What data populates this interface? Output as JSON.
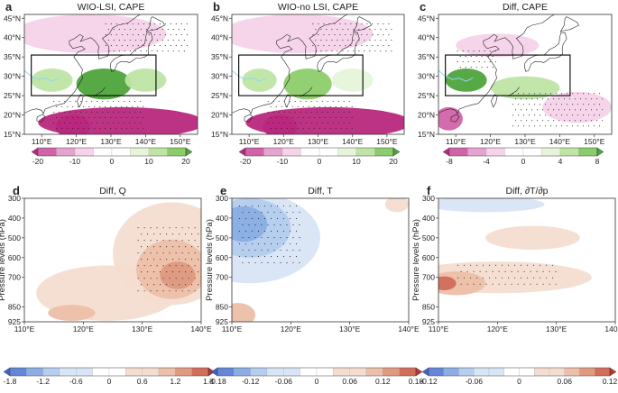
{
  "colors": {
    "pos": [
      "#e6f4d9",
      "#bfe5a5",
      "#8ccd6b",
      "#4ea43b"
    ],
    "neg": [
      "#f6d3ea",
      "#e7a3cf",
      "#d164a8",
      "#b8287d"
    ],
    "warm": [
      "#f4ddd0",
      "#ecbfa8",
      "#df9a7f",
      "#d26d5a",
      "#bc3436"
    ],
    "cool": [
      "#d8e5f5",
      "#b5cdee",
      "#8aaee3",
      "#6386d9",
      "#4261cc"
    ],
    "box": "#000000",
    "coast": "#222222",
    "tibet": "#8fd7ee"
  },
  "chart_data": [
    {
      "id": "a",
      "type": "heatmap",
      "panel_letter": "a",
      "title": "WIO-LSI, CAPE",
      "x": [
        110,
        120,
        130,
        140,
        150
      ],
      "x_tick_labels": [
        "110°E",
        "120°E",
        "130°E",
        "140°E",
        "150°E"
      ],
      "y": [
        15,
        20,
        25,
        30,
        35,
        40,
        45
      ],
      "y_tick_labels": [
        "15°N",
        "20°N",
        "25°N",
        "30°N",
        "35°N",
        "40°N",
        "45°N"
      ],
      "xlim": [
        105,
        155
      ],
      "ylim": [
        15,
        46
      ],
      "colorbar": {
        "levels": [
          -25,
          -20,
          -15,
          -10,
          -5,
          0,
          5,
          10,
          15,
          20,
          25
        ],
        "tick_values": [
          -20,
          -10,
          0,
          10,
          20
        ],
        "tick_labels": [
          "-20",
          "-10",
          "0",
          "10",
          "20"
        ],
        "palette": "pink-green"
      },
      "box_region": {
        "lon": [
          107,
          143
        ],
        "lat": [
          25,
          35.5
        ]
      },
      "fields": [
        {
          "lon": 128,
          "lat": 28,
          "value": 22,
          "rlon": 8,
          "rlat": 4
        },
        {
          "lon": 113,
          "lat": 29,
          "value": 14,
          "rlon": 6,
          "rlat": 3
        },
        {
          "lon": 140,
          "lat": 29,
          "value": 10,
          "rlon": 6,
          "rlat": 3
        },
        {
          "lon": 133,
          "lat": 18,
          "value": -24,
          "rlon": 24,
          "rlat": 4
        },
        {
          "lon": 119,
          "lat": 17,
          "value": -24,
          "rlon": 5,
          "rlat": 3
        },
        {
          "lon": 124,
          "lat": 41,
          "value": -8,
          "rlon": 22,
          "rlat": 5
        }
      ],
      "stipple": [
        {
          "lon": [
            128,
            152
          ],
          "lat": [
            36,
            44
          ]
        },
        {
          "lon": [
            113,
            140
          ],
          "lat": [
            16,
            24
          ]
        }
      ]
    },
    {
      "id": "b",
      "type": "heatmap",
      "panel_letter": "b",
      "title": "WIO-no LSI, CAPE",
      "x": [
        110,
        120,
        130,
        140,
        150
      ],
      "x_tick_labels": [
        "110°E",
        "120°E",
        "130°E",
        "140°E",
        "150°E"
      ],
      "y": [
        15,
        20,
        25,
        30,
        35,
        40,
        45
      ],
      "y_tick_labels": [
        "15°N",
        "20°N",
        "25°N",
        "30°N",
        "35°N",
        "40°N",
        "45°N"
      ],
      "xlim": [
        105,
        155
      ],
      "ylim": [
        15,
        46
      ],
      "colorbar": {
        "levels": [
          -25,
          -20,
          -15,
          -10,
          -5,
          0,
          5,
          10,
          15,
          20,
          25
        ],
        "tick_values": [
          -20,
          -10,
          0,
          10,
          20
        ],
        "tick_labels": [
          "-20",
          "-10",
          "0",
          "10",
          "20"
        ],
        "palette": "pink-green"
      },
      "box_region": {
        "lon": [
          107,
          143
        ],
        "lat": [
          25,
          35.5
        ]
      },
      "fields": [
        {
          "lon": 127,
          "lat": 28,
          "value": 18,
          "rlon": 7,
          "rlat": 4
        },
        {
          "lon": 113,
          "lat": 29,
          "value": 12,
          "rlon": 5,
          "rlat": 3
        },
        {
          "lon": 140,
          "lat": 29,
          "value": 8,
          "rlon": 6,
          "rlat": 3
        },
        {
          "lon": 133,
          "lat": 18,
          "value": -24,
          "rlon": 24,
          "rlat": 4
        },
        {
          "lon": 119,
          "lat": 17,
          "value": -22,
          "rlon": 5,
          "rlat": 3
        },
        {
          "lon": 124,
          "lat": 41,
          "value": -8,
          "rlon": 22,
          "rlat": 5
        }
      ],
      "stipple": [
        {
          "lon": [
            128,
            152
          ],
          "lat": [
            36,
            44
          ]
        },
        {
          "lon": [
            115,
            140
          ],
          "lat": [
            16,
            24
          ]
        }
      ]
    },
    {
      "id": "c",
      "type": "heatmap",
      "panel_letter": "c",
      "title": "Diff, CAPE",
      "x": [
        110,
        120,
        130,
        140,
        150
      ],
      "x_tick_labels": [
        "110°E",
        "120°E",
        "130°E",
        "140°E",
        "150°E"
      ],
      "y": [
        15,
        20,
        25,
        30,
        35,
        40,
        45
      ],
      "y_tick_labels": [
        "15°N",
        "20°N",
        "25°N",
        "30°N",
        "35°N",
        "40°N",
        "45°N"
      ],
      "xlim": [
        105,
        155
      ],
      "ylim": [
        15,
        46
      ],
      "colorbar": {
        "levels": [
          -10,
          -8,
          -6,
          -4,
          -2,
          0,
          2,
          4,
          6,
          8,
          10
        ],
        "tick_values": [
          -8,
          -4,
          0,
          4,
          8
        ],
        "tick_labels": [
          "-8",
          "-4",
          "0",
          "4",
          "8"
        ],
        "palette": "pink-green"
      },
      "box_region": {
        "lon": [
          107,
          143
        ],
        "lat": [
          25,
          35.5
        ]
      },
      "fields": [
        {
          "lon": 113,
          "lat": 29,
          "value": 9,
          "rlon": 6,
          "rlat": 3
        },
        {
          "lon": 130,
          "lat": 27,
          "value": 5,
          "rlon": 10,
          "rlat": 3
        },
        {
          "lon": 122,
          "lat": 38,
          "value": -3,
          "rlon": 12,
          "rlat": 3
        },
        {
          "lon": 108,
          "lat": 19,
          "value": -8,
          "rlon": 4,
          "rlat": 3
        },
        {
          "lon": 145,
          "lat": 22,
          "value": -3,
          "rlon": 10,
          "rlat": 4
        }
      ],
      "stipple": [
        {
          "lon": [
            126,
            153
          ],
          "lat": [
            16,
            26
          ]
        },
        {
          "lon": [
            110,
            122
          ],
          "lat": [
            32,
            37
          ]
        }
      ]
    },
    {
      "id": "d",
      "type": "heatmap",
      "panel_letter": "d",
      "title": "Diff, Q",
      "x": [
        110,
        120,
        130,
        140
      ],
      "x_tick_labels": [
        "110°E",
        "120°E",
        "130°E",
        "140°E"
      ],
      "y": [
        300,
        400,
        500,
        600,
        700,
        850,
        925
      ],
      "y_tick_labels": [
        "300",
        "400",
        "500",
        "600",
        "700",
        "850",
        "925"
      ],
      "ylabel": "Pressure levels (hPa)",
      "xlim": [
        110,
        140
      ],
      "ylim": [
        925,
        300
      ],
      "colorbar": {
        "levels": [
          -2.1,
          -1.8,
          -1.5,
          -1.2,
          -0.9,
          -0.6,
          -0.3,
          0,
          0.3,
          0.6,
          0.9,
          1.2,
          1.5,
          1.8,
          2.1
        ],
        "tick_values": [
          -1.8,
          -1.2,
          -0.6,
          0,
          0.6,
          1.2,
          1.8
        ],
        "tick_labels": [
          "-1.8",
          "-1.2",
          "-0.6",
          "0",
          "0.6",
          "1.2",
          "1.8"
        ],
        "palette": "blue-red"
      },
      "fields": [
        {
          "lon": 135,
          "lat": 580,
          "value": 0.4,
          "rlon": 10,
          "rlat": 260
        },
        {
          "lon": 124,
          "lat": 780,
          "value": 0.4,
          "rlon": 12,
          "rlat": 140
        },
        {
          "lon": 135,
          "lat": 660,
          "value": 0.9,
          "rlon": 6,
          "rlat": 150
        },
        {
          "lon": 118,
          "lat": 880,
          "value": 1.0,
          "rlon": 4,
          "rlat": 40
        },
        {
          "lon": 136,
          "lat": 690,
          "value": 1.4,
          "rlon": 3,
          "rlat": 70
        }
      ],
      "stipple": [
        {
          "lon": [
            129,
            140
          ],
          "lat": [
            440,
            800
          ]
        }
      ]
    },
    {
      "id": "e",
      "type": "heatmap",
      "panel_letter": "e",
      "title": "Diff, T",
      "x": [
        110,
        120,
        130,
        140
      ],
      "x_tick_labels": [
        "110°E",
        "120°E",
        "130°E",
        "140°E"
      ],
      "y": [
        300,
        400,
        500,
        600,
        700,
        850,
        925
      ],
      "y_tick_labels": [
        "300",
        "400",
        "500",
        "600",
        "700",
        "850",
        "925"
      ],
      "ylabel": "Pressure levels (hPa)",
      "xlim": [
        110,
        140
      ],
      "ylim": [
        925,
        300
      ],
      "colorbar": {
        "levels": [
          -0.21,
          -0.18,
          -0.15,
          -0.12,
          -0.09,
          -0.06,
          -0.03,
          0,
          0.03,
          0.06,
          0.09,
          0.12,
          0.15,
          0.18,
          0.21
        ],
        "tick_values": [
          -0.18,
          -0.12,
          -0.06,
          0,
          0.06,
          0.12,
          0.18
        ],
        "tick_labels": [
          "-0.18",
          "-0.12",
          "-0.06",
          "0",
          "0.06",
          "0.12",
          "0.18"
        ],
        "palette": "blue-red"
      },
      "fields": [
        {
          "lon": 113,
          "lat": 500,
          "value": -0.05,
          "rlon": 12,
          "rlat": 230
        },
        {
          "lon": 113,
          "lat": 450,
          "value": -0.1,
          "rlon": 7,
          "rlat": 150
        },
        {
          "lon": 112,
          "lat": 430,
          "value": -0.14,
          "rlon": 4,
          "rlat": 90
        },
        {
          "lon": 111,
          "lat": 890,
          "value": 0.1,
          "rlon": 3,
          "rlat": 60
        },
        {
          "lon": 138,
          "lat": 330,
          "value": 0.03,
          "rlon": 2,
          "rlat": 40
        }
      ],
      "stipple": [
        {
          "lon": [
            111,
            122
          ],
          "lat": [
            330,
            650
          ]
        }
      ]
    },
    {
      "id": "f",
      "type": "heatmap",
      "panel_letter": "f",
      "title": "Diff, ∂T/∂p",
      "x": [
        110,
        120,
        130,
        140
      ],
      "x_tick_labels": [
        "110°E",
        "120°E",
        "130°E",
        "140°E"
      ],
      "y": [
        300,
        400,
        500,
        600,
        700,
        850,
        925
      ],
      "y_tick_labels": [
        "300",
        "400",
        "500",
        "600",
        "700",
        "850",
        "925"
      ],
      "ylabel": "Pressure levels (hPa)",
      "xlim": [
        110,
        140
      ],
      "ylim": [
        925,
        300
      ],
      "colorbar": {
        "levels": [
          -0.14,
          -0.12,
          -0.1,
          -0.08,
          -0.06,
          -0.04,
          -0.02,
          0,
          0.02,
          0.04,
          0.06,
          0.08,
          0.1,
          0.12,
          0.14
        ],
        "tick_values": [
          -0.12,
          -0.06,
          0,
          0.06,
          0.12
        ],
        "tick_labels": [
          "-0.12",
          "-0.06",
          "0",
          "0.06",
          "0.12"
        ],
        "palette": "blue-red"
      },
      "fields": [
        {
          "lon": 120,
          "lat": 700,
          "value": 0.03,
          "rlon": 16,
          "rlat": 80
        },
        {
          "lon": 113,
          "lat": 730,
          "value": 0.06,
          "rlon": 5,
          "rlat": 60
        },
        {
          "lon": 111,
          "lat": 730,
          "value": 0.1,
          "rlon": 2,
          "rlat": 35
        },
        {
          "lon": 118,
          "lat": 330,
          "value": -0.05,
          "rlon": 10,
          "rlat": 40
        },
        {
          "lon": 126,
          "lat": 500,
          "value": 0.02,
          "rlon": 8,
          "rlat": 60
        },
        {
          "lon": 120,
          "lat": 890,
          "value": -0.02,
          "rlon": 3,
          "rlat": 20
        }
      ],
      "stipple": [
        {
          "lon": [
            113,
            130
          ],
          "lat": [
            630,
            760
          ]
        }
      ]
    }
  ]
}
